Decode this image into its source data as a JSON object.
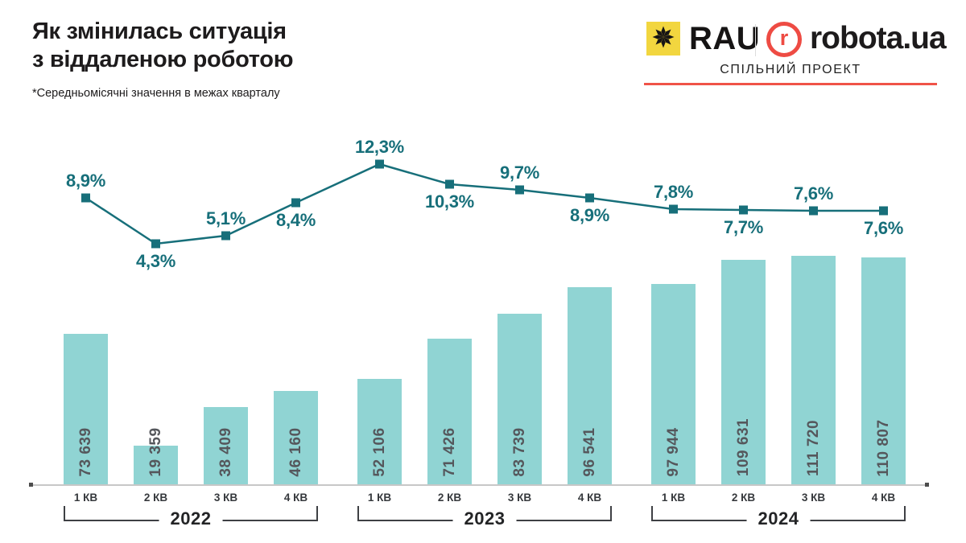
{
  "page": {
    "title_line1": "Як змінилась ситуація",
    "title_line2": "з віддаленою роботою",
    "footnote": "*Середньомісячні значення в межах кварталу"
  },
  "branding": {
    "rau_label": "RAU",
    "robota_mark": "r",
    "robota_label": "robota.ua",
    "tagline": "СПІЛЬНИЙ ПРОЕКТ",
    "rau_yellow": "#f2d63f",
    "accent_red": "#ee4b43"
  },
  "chart_data": {
    "type": "combo-bar-line",
    "title": "Як змінилась ситуація з віддаленою роботою",
    "subtitle": "*Середньомісячні значення в межах кварталу",
    "grid": false,
    "legend": false,
    "categories": [
      "1 КВ",
      "2 КВ",
      "3 КВ",
      "4 КВ",
      "1 КВ",
      "2 КВ",
      "3 КВ",
      "4 КВ",
      "1 КВ",
      "2 КВ",
      "3 КВ",
      "4 КВ"
    ],
    "year_groups": [
      {
        "year": "2022",
        "span": 4
      },
      {
        "year": "2023",
        "span": 4
      },
      {
        "year": "2024",
        "span": 4
      }
    ],
    "bar_series": {
      "values": [
        73639,
        19359,
        38409,
        46160,
        52106,
        71426,
        83739,
        96541,
        97944,
        109631,
        111720,
        110807
      ],
      "labels": [
        "73 639",
        "19 359",
        "38 409",
        "46 160",
        "52 106",
        "71 426",
        "83 739",
        "96 541",
        "97 944",
        "109 631",
        "111 720",
        "110 807"
      ],
      "ylim": [
        0,
        111720
      ]
    },
    "line_series": {
      "values_percent": [
        8.9,
        4.3,
        5.1,
        8.4,
        12.3,
        10.3,
        9.7,
        8.9,
        7.8,
        7.7,
        7.6,
        7.6
      ],
      "labels": [
        "8,9%",
        "4,3%",
        "5,1%",
        "8,4%",
        "12,3%",
        "10,3%",
        "9,7%",
        "8,9%",
        "7,8%",
        "7,7%",
        "7,6%",
        "7,6%"
      ],
      "label_position": [
        "above",
        "below",
        "above",
        "below",
        "above",
        "below",
        "above",
        "below",
        "above",
        "below",
        "above",
        "below"
      ]
    },
    "bar_color": "#90d4d3",
    "line_color": "#176f7a",
    "value_label_color": "#55575c"
  }
}
